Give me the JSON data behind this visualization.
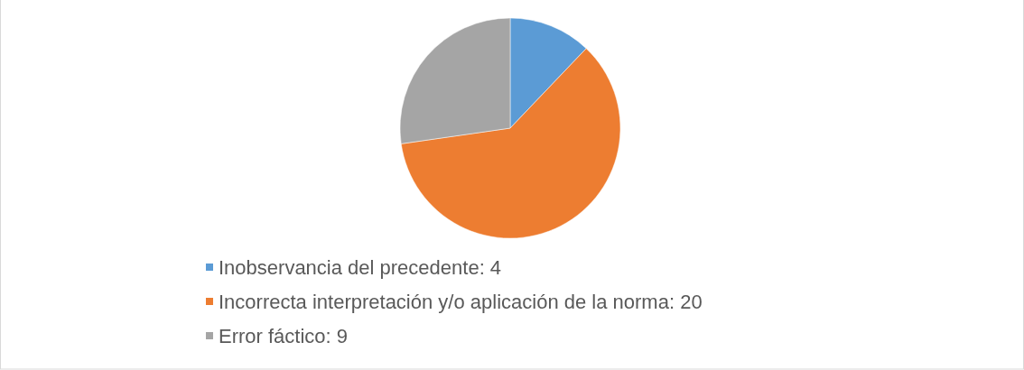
{
  "chart_data": {
    "type": "pie",
    "categories": [
      "Inobservancia del precedente: 4",
      "Incorrecta interpretación y/o aplicación de la norma: 20",
      "Error fáctico: 9"
    ],
    "values": [
      4,
      20,
      9
    ],
    "colors": [
      "#5b9bd5",
      "#ed7d31",
      "#a5a5a5"
    ],
    "legend": "bottom"
  }
}
